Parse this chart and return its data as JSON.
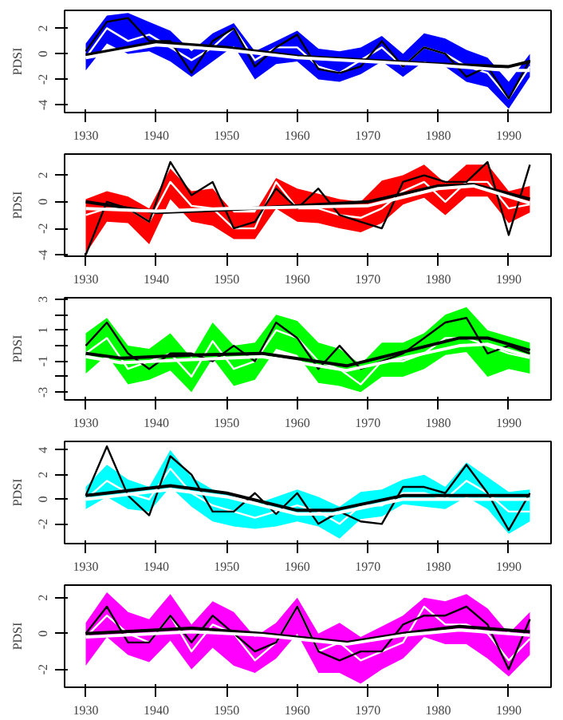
{
  "chart_data": [
    {
      "type": "line",
      "ylabel": "PDSI",
      "xlim": [
        1927,
        1996
      ],
      "ylim": [
        -4.6,
        3.4
      ],
      "xticks": [
        1930,
        1940,
        1950,
        1960,
        1970,
        1980,
        1990
      ],
      "yticks": [
        -4,
        -2,
        0,
        2
      ],
      "grid": false,
      "marker": "none",
      "line_style": "solid",
      "x": [
        1930,
        1933,
        1936,
        1939,
        1942,
        1945,
        1948,
        1951,
        1954,
        1957,
        1960,
        1963,
        1966,
        1969,
        1972,
        1975,
        1978,
        1981,
        1984,
        1987,
        1990,
        1993
      ],
      "series": [
        {
          "color": "#ffffff",
          "colors": [
            "#0000ff",
            "#0000ff",
            "#0000ff",
            "#0000ff",
            "#0000ff",
            "#0000ff",
            "#0000ff",
            "#0000ff",
            "#0000ff",
            "#0000ff",
            "#0000ff",
            "#0000ff",
            "#0000ff",
            "#0000ff",
            "#0000ff",
            "#0000ff",
            "#0000ff",
            "#0000ff",
            "#0000ff",
            "#0000ff",
            "#0000ff",
            "#0000ff"
          ],
          "values": [
            -0.3,
            2.0,
            1.0,
            1.5,
            0.5,
            -0.5,
            0.5,
            2.0,
            -0.5,
            0.5,
            0.5,
            -1.0,
            -1.5,
            -0.5,
            0.5,
            -1.0,
            0.5,
            0.0,
            -1.0,
            -1.5,
            -3.5,
            -1.0
          ],
          "lower": [
            -1.3,
            0.8,
            0.0,
            0.2,
            -0.6,
            -1.8,
            -0.6,
            0.6,
            -2.0,
            -0.8,
            -0.6,
            -2.0,
            -2.2,
            -1.6,
            -0.6,
            -1.8,
            -0.6,
            -1.0,
            -2.2,
            -2.6,
            -4.3,
            -1.8
          ],
          "upper": [
            0.8,
            3.0,
            3.2,
            2.5,
            1.8,
            0.2,
            1.6,
            2.4,
            0.2,
            1.0,
            1.8,
            0.4,
            0.2,
            0.5,
            1.4,
            0.0,
            1.6,
            1.2,
            0.3,
            -0.3,
            -2.2,
            0.0
          ]
        },
        {
          "color": "#000000",
          "values": [
            0.2,
            2.5,
            2.8,
            1.0,
            1.0,
            -1.5,
            1.0,
            2.0,
            -1.0,
            0.5,
            1.5,
            -1.2,
            -1.5,
            -1.0,
            1.0,
            -1.0,
            0.5,
            0.0,
            -1.8,
            -1.0,
            -3.5,
            -0.5
          ]
        },
        {
          "color": "#000000",
          "x": [
            1930,
            1940,
            1950,
            1960,
            1970,
            1980,
            1990,
            1993
          ],
          "values": [
            -0.1,
            0.9,
            0.5,
            -0.2,
            -0.5,
            -0.8,
            -1.0,
            -0.6
          ]
        },
        {
          "color": "#ffffff",
          "x": [
            1930,
            1940,
            1950,
            1960,
            1970,
            1980,
            1990,
            1993
          ],
          "values": [
            -0.3,
            0.7,
            0.3,
            -0.3,
            -0.6,
            -0.9,
            -1.3,
            -1.3
          ]
        }
      ]
    },
    {
      "type": "line",
      "ylabel": "PDSI",
      "xlim": [
        1927,
        1996
      ],
      "ylim": [
        -4.1,
        3.6
      ],
      "xticks": [
        1930,
        1940,
        1950,
        1960,
        1970,
        1980,
        1990
      ],
      "yticks": [
        -4,
        -2,
        0,
        2
      ],
      "grid": false,
      "marker": "none",
      "line_style": "solid",
      "x": [
        1930,
        1933,
        1936,
        1939,
        1942,
        1945,
        1948,
        1951,
        1954,
        1957,
        1960,
        1963,
        1966,
        1969,
        1972,
        1975,
        1978,
        1981,
        1984,
        1987,
        1990,
        1993
      ],
      "series": [
        {
          "color": "#ffffff",
          "colors": [
            "#ff0000",
            "#ff0000",
            "#ff0000",
            "#ff0000",
            "#ff0000",
            "#ff0000",
            "#ff0000",
            "#ff0000",
            "#ff0000",
            "#ff0000",
            "#ff0000",
            "#ff0000",
            "#ff0000",
            "#ff0000",
            "#ff0000",
            "#ff0000",
            "#ff0000",
            "#ff0000",
            "#ff0000",
            "#ff0000",
            "#ff0000",
            "#ff0000"
          ],
          "values": [
            -1.0,
            -0.5,
            -0.5,
            -1.5,
            1.5,
            -0.3,
            -0.5,
            -2.0,
            -2.0,
            1.5,
            -0.5,
            -0.5,
            -1.0,
            -1.2,
            -0.5,
            0.8,
            1.5,
            0.0,
            1.5,
            1.5,
            -0.5,
            -0.2
          ],
          "lower": [
            -3.9,
            -1.5,
            -1.6,
            -3.2,
            0.2,
            -1.5,
            -1.8,
            -2.8,
            -2.8,
            -0.5,
            -1.5,
            -1.6,
            -2.0,
            -2.3,
            -1.6,
            -0.2,
            0.3,
            -1.0,
            0.4,
            0.4,
            -1.6,
            -0.8
          ],
          "upper": [
            0.2,
            0.8,
            0.4,
            -0.5,
            2.5,
            0.8,
            1.0,
            -0.8,
            -0.8,
            1.8,
            1.0,
            0.6,
            0.2,
            0.0,
            1.6,
            2.0,
            2.8,
            1.4,
            2.8,
            2.8,
            0.8,
            1.2
          ]
        },
        {
          "color": "#000000",
          "values": [
            -4.0,
            0.0,
            -0.5,
            -1.5,
            3.0,
            0.5,
            1.5,
            -2.0,
            -1.5,
            1.0,
            -0.5,
            1.0,
            -1.0,
            -1.5,
            -2.0,
            1.5,
            2.0,
            1.5,
            1.5,
            3.0,
            -2.5,
            2.8
          ]
        },
        {
          "color": "#000000",
          "x": [
            1930,
            1940,
            1950,
            1960,
            1970,
            1980,
            1985,
            1993
          ],
          "values": [
            0.0,
            -0.8,
            -0.6,
            -0.3,
            0.0,
            1.2,
            1.3,
            0.2
          ]
        },
        {
          "color": "#ffffff",
          "x": [
            1930,
            1940,
            1950,
            1960,
            1970,
            1980,
            1985,
            1993
          ],
          "values": [
            -0.5,
            -0.7,
            -0.5,
            -0.4,
            -0.3,
            1.0,
            1.2,
            -0.1
          ]
        }
      ]
    },
    {
      "type": "line",
      "ylabel": "PDSI",
      "xlim": [
        1927,
        1996
      ],
      "ylim": [
        -3.5,
        3.1
      ],
      "xticks": [
        1930,
        1940,
        1950,
        1960,
        1970,
        1980,
        1990
      ],
      "yticks": [
        -3,
        {
          "value": -2,
          "label": null
        },
        -1,
        {
          "value": 0,
          "label": null
        },
        1,
        {
          "value": 2,
          "label": null
        },
        3
      ],
      "grid": false,
      "marker": "none",
      "line_style": "solid",
      "x": [
        1930,
        1933,
        1936,
        1939,
        1942,
        1945,
        1948,
        1951,
        1954,
        1957,
        1960,
        1963,
        1966,
        1969,
        1972,
        1975,
        1978,
        1981,
        1984,
        1987,
        1990,
        1993
      ],
      "series": [
        {
          "color": "#ffffff",
          "colors": [
            "#00ff00",
            "#00ff00",
            "#00ff00",
            "#00ff00",
            "#00ff00",
            "#00ff00",
            "#00ff00",
            "#00ff00",
            "#00ff00",
            "#00ff00",
            "#00ff00",
            "#00ff00",
            "#00ff00",
            "#00ff00",
            "#00ff00",
            "#00ff00",
            "#00ff00",
            "#00ff00",
            "#00ff00",
            "#00ff00",
            "#00ff00",
            "#00ff00"
          ],
          "values": [
            -0.5,
            0.5,
            -1.5,
            -1.0,
            -0.5,
            -2.0,
            0.3,
            -1.5,
            -1.0,
            1.0,
            0.5,
            -1.0,
            -1.5,
            -2.5,
            -1.0,
            -1.0,
            -0.5,
            0.5,
            0.5,
            0.0,
            -0.5,
            -0.8
          ],
          "lower": [
            -1.8,
            -0.6,
            -2.5,
            -2.2,
            -1.6,
            -3.0,
            -0.8,
            -2.6,
            -2.2,
            -0.2,
            -0.6,
            -2.4,
            -2.6,
            -3.0,
            -2.0,
            -2.0,
            -1.5,
            -0.6,
            -0.4,
            -2.0,
            -1.5,
            -1.8
          ],
          "upper": [
            0.8,
            1.8,
            0.0,
            -0.2,
            0.8,
            -0.8,
            1.5,
            0.0,
            0.2,
            2.0,
            1.6,
            0.2,
            -0.2,
            -1.2,
            0.2,
            0.2,
            0.8,
            2.0,
            2.5,
            1.0,
            0.6,
            0.2
          ]
        },
        {
          "color": "#000000",
          "values": [
            0.0,
            1.5,
            -0.5,
            -1.5,
            -0.5,
            -0.5,
            -1.0,
            0.0,
            -1.0,
            1.5,
            0.5,
            -1.5,
            0.0,
            -1.5,
            -1.0,
            -0.5,
            0.5,
            1.5,
            1.8,
            -0.5,
            0.0,
            -0.5
          ]
        },
        {
          "color": "#000000",
          "x": [
            1930,
            1935,
            1945,
            1955,
            1967,
            1975,
            1983,
            1987,
            1993
          ],
          "values": [
            -0.5,
            -0.8,
            -0.6,
            -0.5,
            -1.3,
            -0.4,
            0.5,
            0.5,
            -0.3
          ]
        },
        {
          "color": "#ffffff",
          "x": [
            1930,
            1935,
            1945,
            1955,
            1967,
            1975,
            1983,
            1987,
            1993
          ],
          "values": [
            -0.7,
            -1.1,
            -0.9,
            -0.7,
            -1.6,
            -0.8,
            0.0,
            0.1,
            -0.7
          ]
        }
      ]
    },
    {
      "type": "line",
      "ylabel": "PDSI",
      "xlim": [
        1927,
        1996
      ],
      "ylim": [
        -3.6,
        4.7
      ],
      "xticks": [
        1930,
        1940,
        1950,
        1960,
        1970,
        1980,
        1990
      ],
      "yticks": [
        -2,
        0,
        2,
        4
      ],
      "grid": false,
      "marker": "none",
      "line_style": "solid",
      "x": [
        1930,
        1933,
        1936,
        1939,
        1942,
        1945,
        1948,
        1951,
        1954,
        1957,
        1960,
        1963,
        1966,
        1969,
        1972,
        1975,
        1978,
        1981,
        1984,
        1987,
        1990,
        1993
      ],
      "series": [
        {
          "color": "#ffffff",
          "colors": [
            "#00ffff",
            "#00ffff",
            "#00ffff",
            "#00ffff",
            "#00ffff",
            "#00ffff",
            "#00ffff",
            "#00ffff",
            "#00ffff",
            "#00ffff",
            "#00ffff",
            "#00ffff",
            "#00ffff",
            "#00ffff",
            "#00ffff",
            "#00ffff",
            "#00ffff",
            "#00ffff",
            "#00ffff",
            "#00ffff",
            "#00ffff",
            "#00ffff"
          ],
          "values": [
            0.0,
            1.5,
            0.5,
            0.0,
            2.5,
            0.5,
            -0.5,
            -1.0,
            -1.5,
            -1.0,
            -0.5,
            -1.0,
            -2.0,
            -0.5,
            -0.5,
            0.5,
            0.5,
            0.0,
            1.5,
            0.5,
            -1.0,
            -1.0
          ],
          "lower": [
            -0.8,
            0.2,
            -0.8,
            -1.0,
            1.0,
            -0.6,
            -1.8,
            -2.2,
            -2.4,
            -2.2,
            -1.8,
            -2.2,
            -3.2,
            -1.6,
            -1.4,
            -0.4,
            -0.6,
            -0.8,
            0.2,
            -0.8,
            -2.8,
            -1.8
          ],
          "upper": [
            1.0,
            2.8,
            1.6,
            1.0,
            4.0,
            1.8,
            0.8,
            0.2,
            -0.4,
            0.2,
            0.8,
            0.2,
            -0.6,
            0.6,
            0.8,
            1.6,
            2.0,
            1.0,
            3.0,
            1.8,
            0.6,
            0.8
          ]
        },
        {
          "color": "#000000",
          "values": [
            0.3,
            4.3,
            0.3,
            -1.3,
            3.5,
            2.0,
            -1.0,
            -1.0,
            0.5,
            -1.2,
            0.5,
            -2.0,
            -1.0,
            -1.8,
            -2.0,
            1.0,
            1.0,
            0.5,
            2.8,
            0.5,
            -2.5,
            0.5
          ]
        },
        {
          "color": "#000000",
          "x": [
            1930,
            1942,
            1950,
            1960,
            1965,
            1975,
            1985,
            1993
          ],
          "values": [
            0.3,
            1.1,
            0.5,
            -0.9,
            -0.9,
            0.3,
            0.3,
            0.3
          ]
        },
        {
          "color": "#ffffff",
          "x": [
            1930,
            1942,
            1950,
            1960,
            1965,
            1975,
            1985,
            1993
          ],
          "values": [
            0.0,
            0.8,
            0.2,
            -1.2,
            -1.2,
            0.0,
            0.0,
            0.0
          ]
        }
      ]
    },
    {
      "type": "line",
      "ylabel": "PDSI",
      "xlim": [
        1927,
        1996
      ],
      "ylim": [
        -3.0,
        2.7
      ],
      "xticks": [
        1930,
        1940,
        1950,
        1960,
        1970,
        1980,
        1990
      ],
      "yticks": [
        -2,
        0,
        2
      ],
      "grid": false,
      "marker": "none",
      "line_style": "solid",
      "x": [
        1930,
        1933,
        1936,
        1939,
        1942,
        1945,
        1948,
        1951,
        1954,
        1957,
        1960,
        1963,
        1966,
        1969,
        1972,
        1975,
        1978,
        1981,
        1984,
        1987,
        1990,
        1993
      ],
      "series": [
        {
          "color": "#ffffff",
          "colors": [
            "#ff00ff",
            "#ff00ff",
            "#ff00ff",
            "#ff00ff",
            "#ff00ff",
            "#ff00ff",
            "#ff00ff",
            "#ff00ff",
            "#ff00ff",
            "#ff00ff",
            "#ff00ff",
            "#ff00ff",
            "#ff00ff",
            "#ff00ff",
            "#ff00ff",
            "#ff00ff",
            "#ff00ff",
            "#ff00ff",
            "#ff00ff",
            "#ff00ff",
            "#ff00ff",
            "#ff00ff"
          ],
          "values": [
            -0.2,
            1.0,
            0.0,
            -0.5,
            1.0,
            -1.0,
            0.5,
            0.0,
            -1.5,
            -0.5,
            1.5,
            -1.0,
            -0.5,
            -1.5,
            -1.0,
            -0.5,
            1.5,
            0.5,
            0.5,
            0.0,
            -1.5,
            -0.3
          ],
          "lower": [
            -1.8,
            -0.2,
            -1.2,
            -1.6,
            -0.4,
            -2.0,
            -0.8,
            -1.8,
            -2.2,
            -1.4,
            0.0,
            -2.2,
            -2.2,
            -2.8,
            -2.0,
            -1.4,
            -0.2,
            -0.6,
            -0.6,
            -1.4,
            -2.4,
            -1.2
          ],
          "upper": [
            0.6,
            2.3,
            1.2,
            0.8,
            2.2,
            0.5,
            1.8,
            1.2,
            -0.2,
            0.6,
            2.0,
            0.0,
            0.6,
            -0.2,
            0.4,
            1.0,
            2.0,
            1.8,
            2.2,
            1.4,
            0.0,
            1.2
          ]
        },
        {
          "color": "#000000",
          "values": [
            0.0,
            1.5,
            -0.5,
            -0.5,
            1.0,
            -0.5,
            1.0,
            0.0,
            -1.0,
            -0.5,
            1.5,
            -1.0,
            -1.5,
            -1.0,
            -1.0,
            0.5,
            1.0,
            1.0,
            1.5,
            0.5,
            -2.0,
            0.8
          ]
        },
        {
          "color": "#000000",
          "x": [
            1930,
            1945,
            1955,
            1967,
            1975,
            1983,
            1993
          ],
          "values": [
            0.0,
            0.3,
            0.0,
            -0.5,
            0.0,
            0.4,
            0.1
          ]
        },
        {
          "color": "#ffffff",
          "x": [
            1930,
            1945,
            1955,
            1967,
            1975,
            1983,
            1993
          ],
          "values": [
            -0.2,
            0.1,
            -0.1,
            -0.6,
            -0.1,
            0.2,
            -0.1
          ]
        }
      ]
    }
  ]
}
